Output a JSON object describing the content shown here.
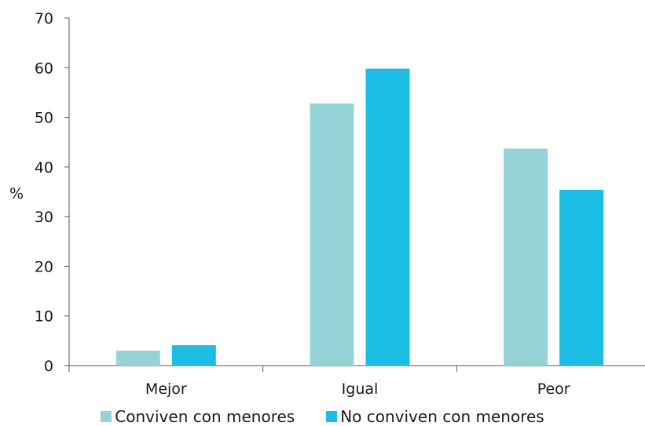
{
  "chart_data": {
    "type": "bar",
    "categories": [
      "Mejor",
      "Igual",
      "Peor"
    ],
    "series": [
      {
        "name": "Conviven con menores",
        "values": [
          3,
          52.8,
          43.7
        ],
        "color": "#96d3d9"
      },
      {
        "name": "No conviven con menores",
        "values": [
          4.1,
          59.8,
          35.4
        ],
        "color": "#1cbee6"
      }
    ],
    "ylabel": "%",
    "ylim": [
      0,
      70
    ],
    "yticks": [
      "0",
      "10",
      "20",
      "30",
      "40",
      "50",
      "60",
      "70"
    ],
    "grid": false,
    "legend": "bottom"
  }
}
